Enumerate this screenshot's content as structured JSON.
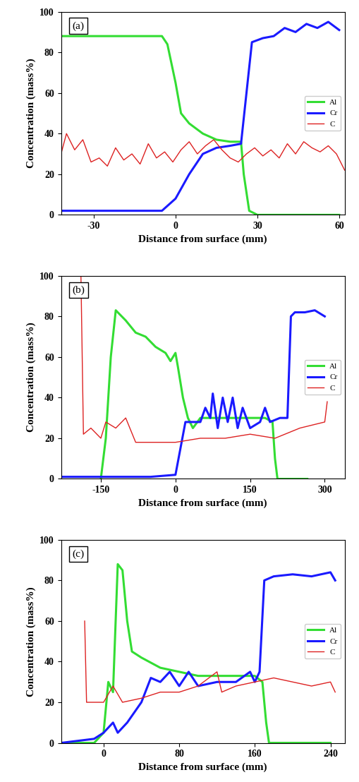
{
  "chart_data": [
    {
      "type": "line",
      "title": "(a)",
      "x_label": "Distance from surface (mm)",
      "y_label": "Concentration (mass%)",
      "xlim": [
        -42,
        62
      ],
      "xticks": [
        -30,
        0,
        30,
        60
      ],
      "ylim": [
        0,
        100
      ],
      "yticks": [
        0,
        20,
        40,
        60,
        80,
        100
      ],
      "legend": "center right",
      "series": [
        {
          "name": "Al",
          "color": "#33dd33",
          "x": [
            -42,
            -30,
            -20,
            -10,
            -5,
            -3,
            0,
            2,
            5,
            10,
            15,
            20,
            24,
            25,
            27,
            30,
            40,
            50,
            60
          ],
          "values": [
            88,
            88,
            88,
            88,
            88,
            84,
            65,
            50,
            45,
            40,
            37,
            36,
            36,
            20,
            2,
            0,
            0,
            0,
            0
          ]
        },
        {
          "name": "Cr",
          "color": "#1a1aff",
          "x": [
            -42,
            -30,
            -20,
            -5,
            0,
            5,
            10,
            15,
            20,
            24,
            26,
            28,
            32,
            36,
            40,
            44,
            48,
            52,
            56,
            60
          ],
          "values": [
            2,
            2,
            2,
            2,
            8,
            20,
            30,
            33,
            34,
            35,
            60,
            85,
            87,
            88,
            92,
            90,
            94,
            92,
            95,
            91
          ]
        },
        {
          "name": "C",
          "color": "#dd2222",
          "x": [
            -42,
            -40,
            -37,
            -34,
            -31,
            -28,
            -25,
            -22,
            -19,
            -16,
            -13,
            -10,
            -7,
            -4,
            -1,
            2,
            5,
            8,
            11,
            14,
            17,
            20,
            23,
            26,
            29,
            32,
            35,
            38,
            41,
            44,
            47,
            50,
            53,
            56,
            59,
            62
          ],
          "values": [
            30,
            40,
            32,
            37,
            26,
            28,
            24,
            33,
            27,
            30,
            25,
            35,
            28,
            31,
            26,
            32,
            36,
            30,
            34,
            37,
            32,
            28,
            26,
            30,
            33,
            29,
            32,
            28,
            35,
            30,
            36,
            33,
            31,
            34,
            30,
            22
          ]
        }
      ]
    },
    {
      "type": "line",
      "title": "(b)",
      "x_label": "Distance from surface (mm)",
      "y_label": "Concentration (mass%)",
      "xlim": [
        -230,
        340
      ],
      "xticks": [
        -150,
        0,
        150,
        300
      ],
      "ylim": [
        0,
        100
      ],
      "yticks": [
        0,
        20,
        40,
        60,
        80,
        100
      ],
      "legend": "center right",
      "series": [
        {
          "name": "Al",
          "color": "#33dd33",
          "x": [
            -150,
            -140,
            -130,
            -120,
            -100,
            -80,
            -60,
            -40,
            -20,
            -10,
            0,
            5,
            15,
            25,
            35,
            50,
            100,
            150,
            180,
            195,
            200,
            205,
            265
          ],
          "values": [
            0,
            20,
            60,
            83,
            78,
            72,
            70,
            65,
            62,
            58,
            62,
            55,
            40,
            30,
            25,
            30,
            30,
            30,
            30,
            28,
            10,
            0,
            0
          ]
        },
        {
          "name": "Cr",
          "color": "#1a1aff",
          "x": [
            -230,
            -50,
            0,
            10,
            20,
            50,
            60,
            70,
            75,
            85,
            95,
            105,
            115,
            125,
            135,
            150,
            170,
            180,
            190,
            210,
            225,
            232,
            240,
            260,
            280,
            300
          ],
          "values": [
            1,
            1,
            2,
            15,
            28,
            28,
            35,
            30,
            42,
            25,
            40,
            28,
            40,
            25,
            35,
            25,
            28,
            35,
            28,
            30,
            30,
            80,
            82,
            82,
            83,
            80
          ]
        },
        {
          "name": "C",
          "color": "#dd2222",
          "x": [
            -190,
            -185,
            -170,
            -150,
            -140,
            -120,
            -100,
            -80,
            -50,
            0,
            50,
            100,
            150,
            200,
            250,
            300,
            305
          ],
          "values": [
            100,
            22,
            25,
            20,
            28,
            25,
            30,
            18,
            18,
            18,
            20,
            20,
            22,
            20,
            25,
            28,
            38
          ]
        }
      ]
    },
    {
      "type": "line",
      "title": "(c)",
      "x_label": "Distance from surface (mm)",
      "y_label": "Concentration (mass%)",
      "xlim": [
        -45,
        255
      ],
      "xticks": [
        0,
        80,
        160,
        240
      ],
      "ylim": [
        0,
        100
      ],
      "yticks": [
        0,
        20,
        40,
        60,
        80,
        100
      ],
      "legend": "center right",
      "series": [
        {
          "name": "Al",
          "color": "#33dd33",
          "x": [
            -45,
            -10,
            0,
            5,
            10,
            15,
            20,
            25,
            30,
            40,
            60,
            80,
            100,
            140,
            160,
            168,
            172,
            175,
            240
          ],
          "values": [
            0,
            0,
            5,
            30,
            25,
            88,
            85,
            60,
            45,
            42,
            37,
            35,
            33,
            33,
            33,
            30,
            10,
            0,
            0
          ]
        },
        {
          "name": "Cr",
          "color": "#1a1aff",
          "x": [
            -45,
            -10,
            0,
            10,
            15,
            25,
            40,
            50,
            60,
            70,
            80,
            90,
            100,
            120,
            140,
            155,
            160,
            165,
            170,
            180,
            200,
            220,
            240,
            245
          ],
          "values": [
            0,
            2,
            5,
            10,
            5,
            10,
            20,
            32,
            30,
            35,
            28,
            35,
            28,
            30,
            30,
            35,
            30,
            35,
            80,
            82,
            83,
            82,
            84,
            80
          ]
        },
        {
          "name": "C",
          "color": "#dd2222",
          "x": [
            -20,
            -18,
            0,
            10,
            20,
            40,
            60,
            80,
            100,
            120,
            125,
            140,
            160,
            180,
            200,
            220,
            240,
            245
          ],
          "values": [
            60,
            20,
            20,
            28,
            20,
            22,
            25,
            25,
            28,
            35,
            25,
            28,
            30,
            32,
            30,
            28,
            30,
            25
          ]
        }
      ]
    }
  ]
}
